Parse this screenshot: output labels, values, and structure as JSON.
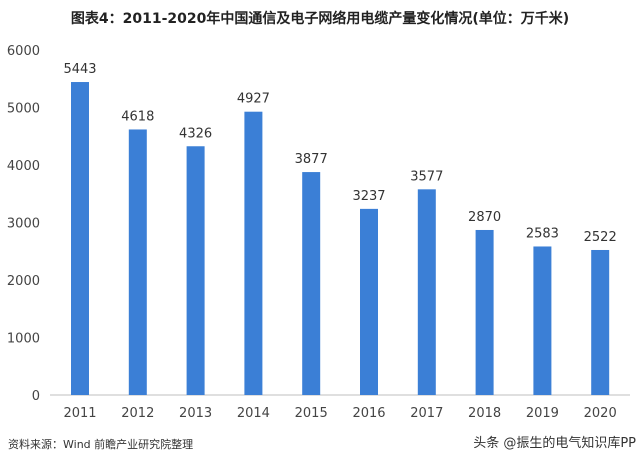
{
  "chart_data": {
    "type": "bar",
    "title": "图表4：2011-2020年中国通信及电子网络用电缆产量变化情况(单位：万千米)",
    "categories": [
      "2011",
      "2012",
      "2013",
      "2014",
      "2015",
      "2016",
      "2017",
      "2018",
      "2019",
      "2020"
    ],
    "values": [
      5443,
      4618,
      4326,
      4927,
      3877,
      3237,
      3577,
      2870,
      2583,
      2522
    ],
    "yticks": [
      0,
      1000,
      2000,
      3000,
      4000,
      5000,
      6000
    ],
    "ylim": [
      0,
      6000
    ],
    "xlabel": "",
    "ylabel": "",
    "grid": false,
    "bar_color": "#3b7fd6"
  },
  "source": "资料来源：Wind 前瞻产业研究院整理",
  "watermark": "头条 @振生的电气知识库PP"
}
